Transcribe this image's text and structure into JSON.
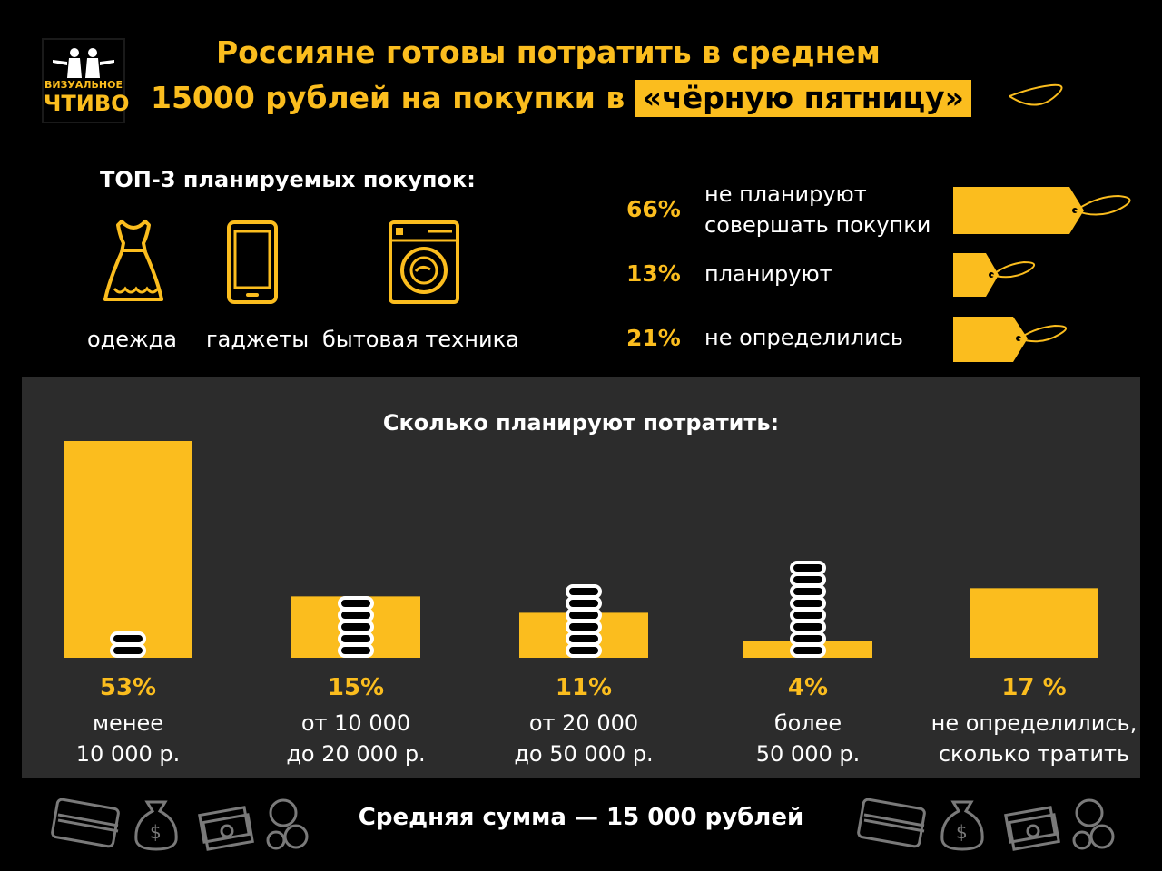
{
  "logo": {
    "line1": "ВИЗУАЛЬНОЕ",
    "line2": "ЧТИВО"
  },
  "title": {
    "line1": "Россияне готовы потратить в среднем",
    "line2_prefix": "15000 рублей на покупки в",
    "line2_highlight": "«чёрную пятницу»"
  },
  "top3": {
    "heading": "ТОП-3 планируемых покупок:",
    "items": [
      {
        "label": "одежда",
        "icon": "dress-icon"
      },
      {
        "label": "гаджеты",
        "icon": "smartphone-icon"
      },
      {
        "label": "бытовая техника",
        "icon": "washing-machine-icon"
      }
    ]
  },
  "plans": [
    {
      "pct": "66%",
      "line1": "не планируют",
      "line2": "совершать покупки",
      "value": 66
    },
    {
      "pct": "13%",
      "line1": "планируют",
      "line2": "",
      "value": 13
    },
    {
      "pct": "21%",
      "line1": "не определились",
      "line2": "",
      "value": 21
    }
  ],
  "spend": {
    "heading": "Сколько планируют потратить:",
    "footer": "Средняя сумма — 15 000 рублей"
  },
  "chart_data": {
    "type": "bar",
    "title": "Сколько планируют потратить:",
    "categories": [
      "менее 10 000 р.",
      "от 10 000 до 20 000 р.",
      "от 20 000 до 50 000 р.",
      "более 50 000 р.",
      "не определились, сколько тратить"
    ],
    "values": [
      53,
      15,
      11,
      4,
      17
    ],
    "value_labels": [
      "53%",
      "15%",
      "11%",
      "4%",
      "17 %"
    ],
    "label_lines": [
      [
        "менее",
        "10 000 р."
      ],
      [
        "от 10 000",
        "до 20 000 р."
      ],
      [
        "от 20 000",
        "до 50 000 р."
      ],
      [
        "более",
        "50 000 р."
      ],
      [
        "не определились,",
        "сколько тратить"
      ]
    ],
    "coin_icons": [
      "coin-stack-icon",
      "coin-stack-icon",
      "coin-stack-icon",
      "coin-stack-icon",
      ""
    ],
    "ylim": [
      0,
      53
    ]
  },
  "colors": {
    "accent": "#fbbd1e",
    "background": "#000000",
    "panel": "#2c2c2c"
  }
}
